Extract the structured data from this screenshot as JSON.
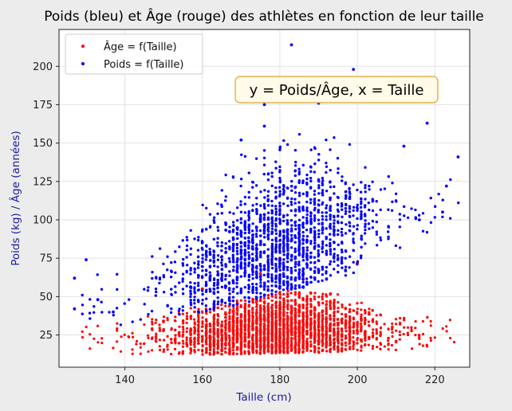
{
  "chart_data": {
    "type": "scatter",
    "title": "Poids (bleu) et Âge (rouge) des athlètes en fonction de leur taille",
    "xlabel": "Taille (cm)",
    "ylabel": "Poids (kg) / Âge (années)",
    "xlim": [
      123,
      229
    ],
    "ylim": [
      4,
      224
    ],
    "x_ticks": [
      140,
      160,
      180,
      200,
      220
    ],
    "y_ticks": [
      25,
      50,
      75,
      100,
      125,
      150,
      175,
      200
    ],
    "grid": true,
    "legend_position": "top-left",
    "annotation": "y = Poids/Âge, x = Taille",
    "series": [
      {
        "name": "Âge = f(Taille)",
        "color": "#ff0000",
        "marker": "dot",
        "trend": [
          [
            127,
            20
          ],
          [
            140,
            22
          ],
          [
            160,
            24
          ],
          [
            180,
            26
          ],
          [
            200,
            27
          ],
          [
            220,
            27
          ]
        ],
        "min": [
          [
            127,
            12
          ],
          [
            160,
            12
          ],
          [
            200,
            14
          ],
          [
            225,
            17
          ]
        ],
        "max": [
          [
            127,
            30
          ],
          [
            150,
            40
          ],
          [
            175,
            50
          ],
          [
            185,
            57
          ],
          [
            195,
            52
          ],
          [
            210,
            40
          ],
          [
            225,
            35
          ]
        ],
        "outliers": [
          [
            180,
            75
          ],
          [
            190,
            67
          ],
          [
            200,
            72
          ],
          [
            175,
            65
          ],
          [
            160,
            55
          ],
          [
            186,
            62
          ]
        ]
      },
      {
        "name": "Poids = f(Taille)",
        "color": "#0000ff",
        "marker": "dot",
        "trend": [
          [
            127,
            38
          ],
          [
            140,
            45
          ],
          [
            150,
            55
          ],
          [
            160,
            63
          ],
          [
            170,
            72
          ],
          [
            180,
            80
          ],
          [
            190,
            90
          ],
          [
            200,
            98
          ],
          [
            210,
            103
          ],
          [
            220,
            108
          ],
          [
            225,
            110
          ]
        ],
        "min": [
          [
            127,
            30
          ],
          [
            140,
            30
          ],
          [
            150,
            36
          ],
          [
            160,
            40
          ],
          [
            170,
            45
          ],
          [
            180,
            52
          ],
          [
            190,
            58
          ],
          [
            200,
            65
          ],
          [
            210,
            75
          ],
          [
            220,
            85
          ]
        ],
        "max": [
          [
            127,
            75
          ],
          [
            140,
            75
          ],
          [
            150,
            95
          ],
          [
            160,
            120
          ],
          [
            165,
            140
          ],
          [
            175,
            160
          ],
          [
            185,
            160
          ],
          [
            195,
            160
          ],
          [
            205,
            140
          ],
          [
            215,
            125
          ],
          [
            225,
            140
          ]
        ],
        "outliers": [
          [
            183,
            214
          ],
          [
            199,
            198
          ],
          [
            176,
            175
          ],
          [
            190,
            176
          ],
          [
            200,
            187
          ],
          [
            170,
            152
          ],
          [
            176,
            161
          ],
          [
            212,
            148
          ],
          [
            218,
            163
          ],
          [
            226,
            141
          ],
          [
            130,
            74
          ],
          [
            127,
            62
          ],
          [
            127,
            42
          ],
          [
            223,
            122
          ],
          [
            216,
            100
          ],
          [
            222,
            105
          ],
          [
            133,
            48
          ],
          [
            137,
            40
          ]
        ]
      }
    ]
  }
}
